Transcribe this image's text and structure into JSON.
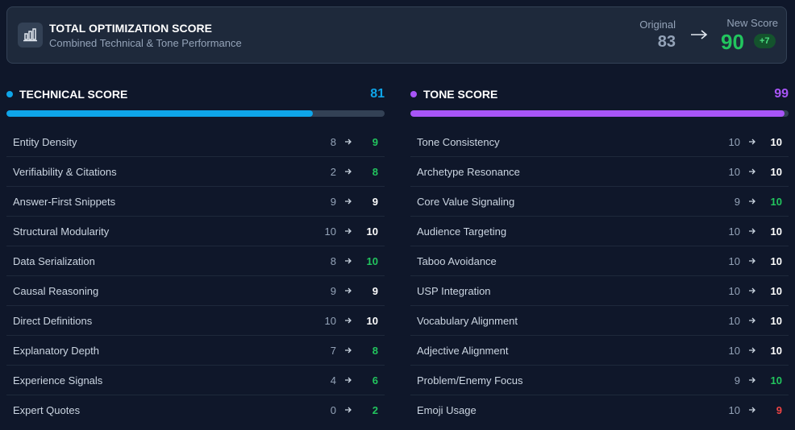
{
  "header": {
    "title": "TOTAL OPTIMIZATION SCORE",
    "subtitle": "Combined Technical & Tone Performance",
    "original_label": "Original",
    "original_value": 83,
    "new_label": "New Score",
    "new_value": 90,
    "delta": "+7"
  },
  "sections": [
    {
      "title": "TECHNICAL SCORE",
      "score": 81,
      "color": "#0ea5e9",
      "rows": [
        {
          "label": "Entity Density",
          "original": 8,
          "new": 9
        },
        {
          "label": "Verifiability & Citations",
          "original": 2,
          "new": 8
        },
        {
          "label": "Answer-First Snippets",
          "original": 9,
          "new": 9
        },
        {
          "label": "Structural Modularity",
          "original": 10,
          "new": 10
        },
        {
          "label": "Data Serialization",
          "original": 8,
          "new": 10
        },
        {
          "label": "Causal Reasoning",
          "original": 9,
          "new": 9
        },
        {
          "label": "Direct Definitions",
          "original": 10,
          "new": 10
        },
        {
          "label": "Explanatory Depth",
          "original": 7,
          "new": 8
        },
        {
          "label": "Experience Signals",
          "original": 4,
          "new": 6
        },
        {
          "label": "Expert Quotes",
          "original": 0,
          "new": 2
        }
      ]
    },
    {
      "title": "TONE SCORE",
      "score": 99,
      "color": "#a855f7",
      "rows": [
        {
          "label": "Tone Consistency",
          "original": 10,
          "new": 10
        },
        {
          "label": "Archetype Resonance",
          "original": 10,
          "new": 10
        },
        {
          "label": "Core Value Signaling",
          "original": 9,
          "new": 10
        },
        {
          "label": "Audience Targeting",
          "original": 10,
          "new": 10
        },
        {
          "label": "Taboo Avoidance",
          "original": 10,
          "new": 10
        },
        {
          "label": "USP Integration",
          "original": 10,
          "new": 10
        },
        {
          "label": "Vocabulary Alignment",
          "original": 10,
          "new": 10
        },
        {
          "label": "Adjective Alignment",
          "original": 10,
          "new": 10
        },
        {
          "label": "Problem/Enemy Focus",
          "original": 9,
          "new": 10
        },
        {
          "label": "Emoji Usage",
          "original": 10,
          "new": 9
        }
      ]
    }
  ]
}
